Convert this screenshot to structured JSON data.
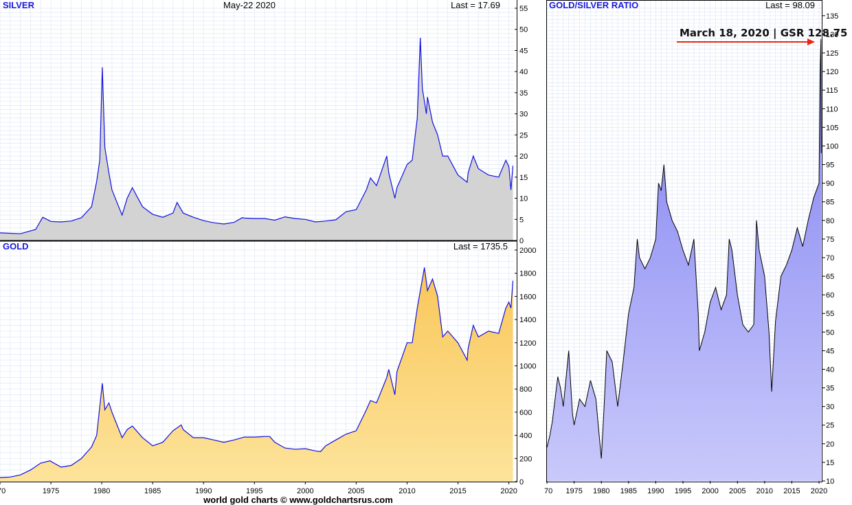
{
  "header": {
    "date": "May-22  2020",
    "footer": "world gold charts © www.goldchartsrus.com"
  },
  "colors": {
    "price_line": "#1010e0",
    "silver_fill": "#d3d3d3",
    "gold_fill_top": "#f9c75a",
    "gold_fill_bottom": "#fde39b",
    "ratio_fill_top": "#7f7ff2",
    "ratio_fill_bottom": "#c9c9fb",
    "ratio_line": "#000000",
    "annotation_arrow": "#ee2211",
    "grid": "#dfe7f5"
  },
  "chart_data": [
    {
      "id": "silver",
      "type": "area",
      "title": "SILVER",
      "last_label": "Last = 17.69",
      "xlim": [
        1970,
        2020.5
      ],
      "ylim": [
        0,
        55
      ],
      "yticks": [
        "0",
        "5",
        "10",
        "15",
        "20",
        "25",
        "30",
        "35",
        "40",
        "45",
        "50",
        "55"
      ],
      "xticks": [],
      "grid": true,
      "series": [
        {
          "x": [
            1970,
            1972,
            1973.5,
            1974.2,
            1975,
            1976,
            1977,
            1978,
            1979,
            1979.5,
            1979.8,
            1980.05,
            1980.3,
            1980.7,
            1981,
            1982,
            1982.5,
            1983,
            1984,
            1985,
            1986,
            1987,
            1987.4,
            1988,
            1989,
            1990,
            1991,
            1992,
            1993,
            1993.8,
            1994,
            1995,
            1996,
            1997,
            1998,
            1999,
            2000,
            2001,
            2002,
            2003,
            2004,
            2005,
            2006,
            2006.4,
            2007,
            2008,
            2008.2,
            2008.8,
            2009,
            2010,
            2010.5,
            2011,
            2011.3,
            2011.5,
            2011.9,
            2012,
            2012.5,
            2013,
            2013.5,
            2014,
            2015,
            2015.9,
            2016,
            2016.5,
            2017,
            2018,
            2019,
            2019.7,
            2020,
            2020.2,
            2020.4
          ],
          "values": [
            1.8,
            1.6,
            2.6,
            5.5,
            4.5,
            4.4,
            4.6,
            5.4,
            8.0,
            14.0,
            19.0,
            41.0,
            22.0,
            16.0,
            12.0,
            6.0,
            10.0,
            12.5,
            8.0,
            6.2,
            5.5,
            6.5,
            9.0,
            6.5,
            5.5,
            4.7,
            4.2,
            3.9,
            4.3,
            5.4,
            5.3,
            5.2,
            5.2,
            4.8,
            5.6,
            5.2,
            5.0,
            4.4,
            4.6,
            4.9,
            6.8,
            7.3,
            12.0,
            14.8,
            13.0,
            20.0,
            16.0,
            10.0,
            12.5,
            18.0,
            19.0,
            29.0,
            48.0,
            36.0,
            30.0,
            34.0,
            28.0,
            25.0,
            20.0,
            20.0,
            15.5,
            13.8,
            16.0,
            20.0,
            17.0,
            15.5,
            15.0,
            19.0,
            17.5,
            12.0,
            17.69
          ]
        }
      ]
    },
    {
      "id": "gold",
      "type": "area",
      "title": "GOLD",
      "last_label": "Last = 1735.5",
      "xlim": [
        1970,
        2020.5
      ],
      "ylim": [
        0,
        2000
      ],
      "yticks": [
        "0",
        "200",
        "400",
        "600",
        "800",
        "1000",
        "1200",
        "1400",
        "1600",
        "1800",
        "2000"
      ],
      "xticks": [
        "70",
        "1975",
        "1980",
        "1985",
        "1990",
        "1995",
        "2000",
        "2005",
        "2010",
        "2015",
        "2020"
      ],
      "grid": true,
      "series": [
        {
          "x": [
            1970,
            1971,
            1972,
            1973,
            1974,
            1974.9,
            1976,
            1977,
            1978,
            1979,
            1979.5,
            1980.05,
            1980.3,
            1980.7,
            1981,
            1982,
            1982.5,
            1983,
            1984,
            1985,
            1986,
            1987,
            1987.8,
            1988,
            1989,
            1990,
            1991,
            1992,
            1993,
            1994,
            1995,
            1996,
            1996.5,
            1997,
            1998,
            1999,
            2000,
            2001,
            2001.5,
            2002,
            2003,
            2004,
            2005,
            2006,
            2006.4,
            2007,
            2008,
            2008.2,
            2008.8,
            2009,
            2010,
            2010.5,
            2011,
            2011.7,
            2012,
            2012.5,
            2013,
            2013.5,
            2014,
            2015,
            2015.9,
            2016,
            2016.5,
            2017,
            2018,
            2019,
            2019.7,
            2020,
            2020.2,
            2020.4
          ],
          "values": [
            35,
            40,
            58,
            100,
            160,
            180,
            125,
            140,
            200,
            300,
            400,
            850,
            620,
            680,
            600,
            380,
            450,
            480,
            380,
            310,
            340,
            440,
            490,
            450,
            380,
            380,
            360,
            340,
            360,
            385,
            385,
            390,
            390,
            340,
            290,
            280,
            285,
            265,
            260,
            310,
            360,
            410,
            440,
            620,
            700,
            680,
            900,
            970,
            750,
            950,
            1200,
            1200,
            1500,
            1850,
            1650,
            1750,
            1600,
            1250,
            1300,
            1200,
            1050,
            1150,
            1350,
            1250,
            1300,
            1280,
            1500,
            1550,
            1500,
            1735.5
          ]
        }
      ]
    },
    {
      "id": "ratio",
      "type": "area",
      "title": "GOLD/SILVER RATIO",
      "last_label": "Last = 98.09",
      "xlim": [
        1970,
        2020.5
      ],
      "ylim": [
        10,
        137
      ],
      "yticks": [
        "10",
        "15",
        "20",
        "25",
        "30",
        "35",
        "40",
        "45",
        "50",
        "55",
        "60",
        "65",
        "70",
        "75",
        "80",
        "85",
        "90",
        "95",
        "100",
        "105",
        "110",
        "115",
        "120",
        "125",
        "130",
        "135"
      ],
      "xticks": [
        "70",
        "1975",
        "1980",
        "1985",
        "1990",
        "1995",
        "2000",
        "2005",
        "2010",
        "2015",
        "2020"
      ],
      "grid": true,
      "annotation": "March 18, 2020 | GSR 128.75",
      "series": [
        {
          "x": [
            1970,
            1970.5,
            1971,
            1972,
            1972.5,
            1973,
            1974,
            1974.7,
            1975,
            1976,
            1977,
            1978,
            1979,
            1979.5,
            1980,
            1980.5,
            1981,
            1982,
            1983,
            1984,
            1985,
            1986,
            1986.6,
            1987,
            1988,
            1989,
            1990,
            1990.5,
            1991,
            1991.5,
            1992,
            1993,
            1994,
            1995,
            1996,
            1997,
            1997.8,
            1998,
            1999,
            2000,
            2001,
            2002,
            2003,
            2003.5,
            2004,
            2005,
            2006,
            2007,
            2008,
            2008.5,
            2009,
            2010,
            2010.8,
            2011.3,
            2012,
            2013,
            2014,
            2015,
            2016,
            2017,
            2018,
            2019,
            2020,
            2020.2,
            2020.35,
            2020.4
          ],
          "values": [
            19,
            22,
            26,
            38,
            35,
            30,
            45,
            28,
            25,
            32,
            30,
            37,
            32,
            24,
            16,
            30,
            45,
            42,
            30,
            42,
            55,
            62,
            75,
            70,
            67,
            70,
            75,
            90,
            88,
            95,
            85,
            80,
            77,
            72,
            68,
            75,
            55,
            45,
            50,
            58,
            62,
            56,
            60,
            75,
            72,
            60,
            52,
            50,
            52,
            80,
            72,
            65,
            50,
            34,
            53,
            65,
            68,
            72,
            78,
            73,
            80,
            86,
            90,
            120,
            128.75,
            98.09
          ]
        }
      ]
    }
  ]
}
